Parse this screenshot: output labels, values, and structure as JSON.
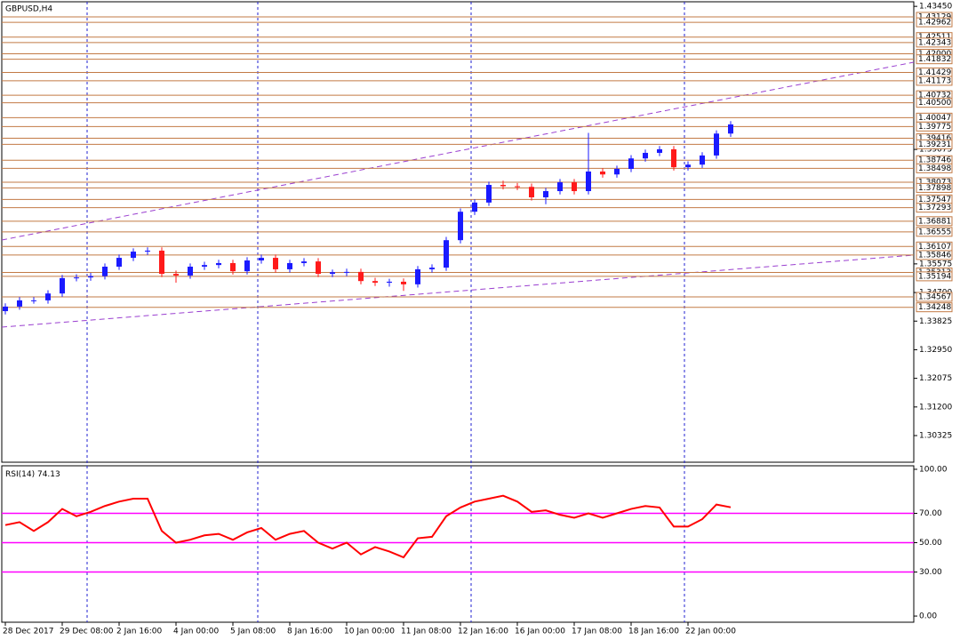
{
  "chart_data": [
    {
      "type": "candlestick",
      "title": "GBPUSD,H4",
      "categories": [
        "28 Dec 2017",
        null,
        null,
        null,
        "29 Dec 08:00",
        null,
        null,
        null,
        "2 Jan 16:00",
        null,
        null,
        null,
        "4 Jan 00:00",
        null,
        null,
        null,
        "5 Jan 08:00",
        null,
        null,
        null,
        "8 Jan 16:00",
        null,
        null,
        null,
        "10 Jan 00:00",
        null,
        null,
        null,
        "11 Jan 08:00",
        null,
        null,
        null,
        "12 Jan 16:00",
        null,
        null,
        null,
        "16 Jan 00:00",
        null,
        null,
        null,
        "17 Jan 08:00",
        null,
        null,
        null,
        "18 Jan 16:00",
        null,
        null,
        null,
        "22 Jan 00:00",
        null,
        null,
        null
      ],
      "candles": [
        [
          1.3413,
          1.3437,
          1.3403,
          1.3427
        ],
        [
          1.3427,
          1.3456,
          1.3417,
          1.3446
        ],
        [
          1.3446,
          1.3456,
          1.3436,
          1.3446
        ],
        [
          1.3446,
          1.3477,
          1.3436,
          1.3467
        ],
        [
          1.3467,
          1.3524,
          1.3457,
          1.3514
        ],
        [
          1.3514,
          1.3526,
          1.3504,
          1.3516
        ],
        [
          1.3516,
          1.353,
          1.3506,
          1.352
        ],
        [
          1.352,
          1.3559,
          1.351,
          1.3549
        ],
        [
          1.3549,
          1.3586,
          1.3539,
          1.3576
        ],
        [
          1.3576,
          1.3605,
          1.3566,
          1.3595
        ],
        [
          1.3595,
          1.3608,
          1.3585,
          1.3598
        ],
        [
          1.3598,
          1.3608,
          1.3517,
          1.3527
        ],
        [
          1.3527,
          1.3537,
          1.35,
          1.3522
        ],
        [
          1.3522,
          1.3559,
          1.3512,
          1.3549
        ],
        [
          1.3549,
          1.3564,
          1.3539,
          1.3554
        ],
        [
          1.3554,
          1.357,
          1.3544,
          1.356
        ],
        [
          1.356,
          1.357,
          1.3525,
          1.3535
        ],
        [
          1.3535,
          1.3578,
          1.3525,
          1.3568
        ],
        [
          1.3568,
          1.3586,
          1.3558,
          1.3576
        ],
        [
          1.3576,
          1.3586,
          1.3531,
          1.3541
        ],
        [
          1.3541,
          1.357,
          1.3531,
          1.356
        ],
        [
          1.356,
          1.3575,
          1.355,
          1.3565
        ],
        [
          1.3565,
          1.3575,
          1.3517,
          1.3527
        ],
        [
          1.3527,
          1.354,
          1.3517,
          1.3532
        ],
        [
          1.3532,
          1.3543,
          1.352,
          1.3533
        ],
        [
          1.3533,
          1.3543,
          1.3495,
          1.3505
        ],
        [
          1.3505,
          1.3515,
          1.349,
          1.35
        ],
        [
          1.35,
          1.3512,
          1.3488,
          1.3503
        ],
        [
          1.3503,
          1.3513,
          1.3475,
          1.3495
        ],
        [
          1.3495,
          1.3551,
          1.3485,
          1.3541
        ],
        [
          1.3541,
          1.3556,
          1.3531,
          1.3546
        ],
        [
          1.3546,
          1.364,
          1.3536,
          1.363
        ],
        [
          1.363,
          1.3727,
          1.362,
          1.3717
        ],
        [
          1.3717,
          1.3755,
          1.3707,
          1.3745
        ],
        [
          1.3745,
          1.3809,
          1.3735,
          1.3799
        ],
        [
          1.3799,
          1.3812,
          1.3785,
          1.3795
        ],
        [
          1.3795,
          1.3805,
          1.3783,
          1.3793
        ],
        [
          1.3793,
          1.3803,
          1.3751,
          1.3761
        ],
        [
          1.3761,
          1.379,
          1.374,
          1.378
        ],
        [
          1.378,
          1.3817,
          1.377,
          1.3807
        ],
        [
          1.3807,
          1.3817,
          1.377,
          1.378
        ],
        [
          1.378,
          1.3958,
          1.377,
          1.384
        ],
        [
          1.384,
          1.385,
          1.3821,
          1.3831
        ],
        [
          1.3831,
          1.3858,
          1.3821,
          1.3848
        ],
        [
          1.3848,
          1.389,
          1.3838,
          1.388
        ],
        [
          1.388,
          1.3907,
          1.387,
          1.3897
        ],
        [
          1.3897,
          1.3918,
          1.3887,
          1.3908
        ],
        [
          1.3908,
          1.3918,
          1.3843,
          1.3853
        ],
        [
          1.3853,
          1.3871,
          1.3843,
          1.3861
        ],
        [
          1.3861,
          1.3899,
          1.3851,
          1.3889
        ],
        [
          1.3889,
          1.3966,
          1.3879,
          1.3956
        ],
        [
          1.3956,
          1.3994,
          1.3946,
          1.3984
        ]
      ],
      "up_color": "#1a1aff",
      "down_color": "#ff1a1a",
      "ylim": [
        1.2951,
        1.4359
      ],
      "yticks": [
        {
          "value": 1.4345,
          "label": "1.43450"
        },
        1.39075,
        1.35575,
        {
          "value": 1.347,
          "label": "1.34700"
        },
        1.33825,
        {
          "value": 1.3295,
          "label": "1.32950"
        },
        1.32075,
        {
          "value": 1.312,
          "label": "1.31200"
        },
        1.30325
      ],
      "levels": [
        1.43129,
        1.42962,
        1.42511,
        1.42343,
        {
          "value": 1.42,
          "label": "1.42000"
        },
        1.41832,
        1.41429,
        1.41173,
        1.40732,
        {
          "value": 1.405,
          "label": "1.40500"
        },
        1.40047,
        1.39775,
        1.39416,
        1.39231,
        1.38746,
        1.38498,
        1.38073,
        1.37898,
        1.37547,
        1.37293,
        1.36881,
        1.36555,
        1.36107,
        1.35846,
        1.35313,
        1.35194,
        1.34567,
        1.34248
      ],
      "level_color": "#c27a45"
    },
    {
      "type": "line",
      "title": "RSI(14)",
      "color": "#ff0000",
      "values": [
        62,
        64,
        58,
        64,
        73,
        68,
        71,
        75,
        78,
        80,
        80,
        58,
        50,
        52,
        55,
        56,
        52,
        57,
        60,
        52,
        56,
        58,
        50,
        46,
        50,
        42,
        47,
        44,
        40,
        53,
        54,
        68,
        74,
        78,
        80,
        82,
        78,
        71,
        72,
        69,
        67,
        70,
        67,
        70,
        73,
        75,
        74,
        61,
        61,
        66,
        76,
        74.13
      ],
      "ylim": [
        -4.2,
        102.4
      ],
      "yticks": [
        {
          "value": 100,
          "label": "100.00"
        },
        {
          "value": 70,
          "label": "70.00"
        },
        {
          "value": 50,
          "label": "50.00"
        },
        {
          "value": 30,
          "label": "30.00"
        },
        {
          "value": 0,
          "label": "0.00"
        }
      ],
      "level_ticks": [
        1,
        2,
        3
      ],
      "level_color": "#ff00ff"
    }
  ]
}
